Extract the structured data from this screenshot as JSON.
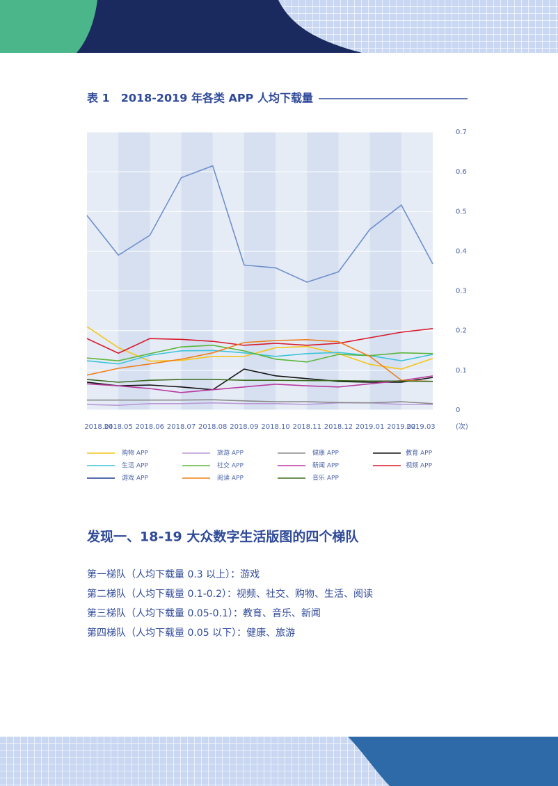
{
  "header": {
    "title": "表 1　2018-2019 年各类 APP 人均下载量"
  },
  "chart_data": {
    "type": "line",
    "categories": [
      "2018.04",
      "2018.05",
      "2018.06",
      "2018.07",
      "2018.08",
      "2018.09",
      "2018.10",
      "2018.11",
      "2018.12",
      "2019.01",
      "2019.02",
      "2019.03"
    ],
    "ylim": [
      0,
      0.7
    ],
    "yticks": [
      0,
      0.1,
      0.2,
      0.3,
      0.4,
      0.5,
      0.6,
      0.7
    ],
    "y_unit": "(次)",
    "series": [
      {
        "name": "购物 APP",
        "color": "#f5c518",
        "values": [
          0.21,
          0.157,
          0.123,
          0.125,
          0.135,
          0.135,
          0.157,
          0.16,
          0.142,
          0.115,
          0.103,
          0.13
        ]
      },
      {
        "name": "旅游 APP",
        "color": "#b99ad6",
        "values": [
          0.014,
          0.012,
          0.016,
          0.016,
          0.018,
          0.016,
          0.016,
          0.014,
          0.018,
          0.018,
          0.014,
          0.014
        ]
      },
      {
        "name": "健康 APP",
        "color": "#8a8a8a",
        "values": [
          0.025,
          0.025,
          0.025,
          0.025,
          0.026,
          0.023,
          0.021,
          0.021,
          0.019,
          0.018,
          0.021,
          0.016
        ]
      },
      {
        "name": "教育 APP",
        "color": "#111111",
        "values": [
          0.07,
          0.061,
          0.063,
          0.058,
          0.051,
          0.103,
          0.086,
          0.079,
          0.072,
          0.07,
          0.07,
          0.082
        ]
      },
      {
        "name": "生活 APP",
        "color": "#3cc4d8",
        "values": [
          0.124,
          0.116,
          0.138,
          0.149,
          0.15,
          0.144,
          0.135,
          0.142,
          0.145,
          0.137,
          0.124,
          0.14
        ]
      },
      {
        "name": "社交 APP",
        "color": "#5bb53a",
        "values": [
          0.131,
          0.124,
          0.142,
          0.159,
          0.163,
          0.149,
          0.128,
          0.121,
          0.14,
          0.137,
          0.144,
          0.142
        ]
      },
      {
        "name": "新闻 APP",
        "color": "#b8399e",
        "values": [
          0.066,
          0.061,
          0.054,
          0.044,
          0.051,
          0.058,
          0.065,
          0.061,
          0.058,
          0.066,
          0.074,
          0.086
        ]
      },
      {
        "name": "视频 APP",
        "color": "#d7192b",
        "values": [
          0.18,
          0.143,
          0.18,
          0.178,
          0.173,
          0.163,
          0.168,
          0.163,
          0.168,
          0.182,
          0.196,
          0.205
        ]
      },
      {
        "name": "游戏 APP",
        "color": "#6f8fcc",
        "legend_color": "#1f3a8a",
        "values": [
          0.49,
          0.39,
          0.44,
          0.585,
          0.615,
          0.365,
          0.358,
          0.322,
          0.348,
          0.455,
          0.516,
          0.368
        ]
      },
      {
        "name": "阅读 APP",
        "color": "#ef7d1a",
        "values": [
          0.088,
          0.105,
          0.116,
          0.128,
          0.144,
          0.17,
          0.175,
          0.177,
          0.172,
          0.135,
          0.075,
          0.072
        ]
      },
      {
        "name": "音乐 APP",
        "color": "#3d6b1f",
        "values": [
          0.077,
          0.07,
          0.075,
          0.077,
          0.077,
          0.075,
          0.075,
          0.074,
          0.074,
          0.073,
          0.073,
          0.072
        ]
      }
    ]
  },
  "section": {
    "title": "发现一、18-19 大众数字生活版图的四个梯队",
    "paragraphs": [
      "第一梯队（人均下载量 0.3 以上）：游戏",
      "第二梯队（人均下载量 0.1-0.2）：视频、社交、购物、生活、阅读",
      "第三梯队（人均下载量 0.05-0.1）：教育、音乐、新闻",
      "第四梯队（人均下载量 0.05 以下）：健康、旅游"
    ]
  }
}
